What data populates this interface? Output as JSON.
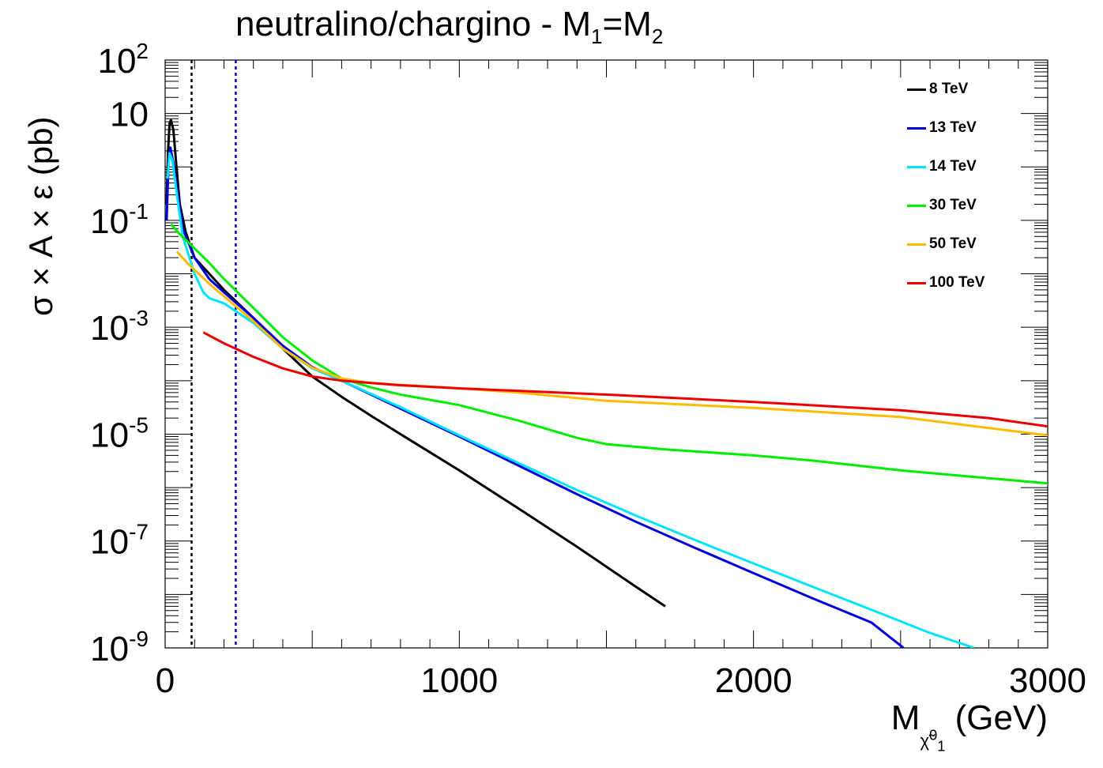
{
  "chart_data": {
    "type": "line",
    "title": "neutralino/chargino - M",
    "title_sub1": "1",
    "title_eq": "=M",
    "title_sub2": "2",
    "xlabel": "M",
    "xlabel_sub": "χ̃",
    "xlabel_sup": "0",
    "xlabel_subsub": "1",
    "xlabel_unit": " (GeV)",
    "ylabel": "σ × A × ε (pb)",
    "xlim": [
      0,
      3000
    ],
    "ylim_log10": [
      -9,
      2
    ],
    "x_ticks": [
      0,
      1000,
      2000,
      3000
    ],
    "x_tick_labels": [
      "0",
      "1000",
      "2000",
      "3000"
    ],
    "y_tick_labels": [
      {
        "base": "10",
        "exp": "2",
        "log": 2
      },
      {
        "base": "10",
        "exp": "",
        "log": 1
      },
      {
        "base": "10",
        "exp": "-1",
        "log": -1
      },
      {
        "base": "10",
        "exp": "-3",
        "log": -3
      },
      {
        "base": "10",
        "exp": "-5",
        "log": -5
      },
      {
        "base": "10",
        "exp": "-7",
        "log": -7
      },
      {
        "base": "10",
        "exp": "-9",
        "log": -9
      }
    ],
    "vertical_lines": [
      {
        "x": 90,
        "color": "#000000",
        "style": "dotted"
      },
      {
        "x": 240,
        "color": "#0000cc",
        "style": "dotted"
      }
    ],
    "series": [
      {
        "name": "8 TeV",
        "color": "#000000",
        "points": [
          [
            5,
            0.2
          ],
          [
            10,
            2
          ],
          [
            15,
            6.5
          ],
          [
            20,
            7.5
          ],
          [
            28,
            5
          ],
          [
            40,
            0.8
          ],
          [
            50,
            0.2
          ],
          [
            70,
            0.06
          ],
          [
            100,
            0.02
          ],
          [
            150,
            0.01
          ],
          [
            200,
            0.005
          ],
          [
            300,
            0.0015
          ],
          [
            400,
            0.0004
          ],
          [
            500,
            0.00012
          ],
          [
            600,
            5e-05
          ],
          [
            700,
            2.2e-05
          ],
          [
            800,
            1e-05
          ],
          [
            1000,
            2.1e-06
          ],
          [
            1200,
            4.1e-07
          ],
          [
            1400,
            7.8e-08
          ],
          [
            1600,
            1.4e-08
          ],
          [
            1700,
            6e-09
          ]
        ]
      },
      {
        "name": "13 TeV",
        "color": "#0000dd",
        "points": [
          [
            5,
            0.1
          ],
          [
            12,
            1.6
          ],
          [
            18,
            2.3
          ],
          [
            28,
            1.2
          ],
          [
            40,
            0.4
          ],
          [
            60,
            0.07
          ],
          [
            100,
            0.02
          ],
          [
            150,
            0.008
          ],
          [
            200,
            0.0045
          ],
          [
            300,
            0.0015
          ],
          [
            400,
            0.00045
          ],
          [
            500,
            0.00018
          ],
          [
            600,
            0.0001
          ],
          [
            700,
            5.5e-05
          ],
          [
            800,
            3e-05
          ],
          [
            1000,
            9e-06
          ],
          [
            1200,
            2.6e-06
          ],
          [
            1400,
            7.5e-07
          ],
          [
            1600,
            2.3e-07
          ],
          [
            1800,
            7.5e-08
          ],
          [
            2000,
            2.5e-08
          ],
          [
            2200,
            8.5e-09
          ],
          [
            2400,
            3e-09
          ],
          [
            2510,
            1e-09
          ]
        ]
      },
      {
        "name": "14 TeV",
        "color": "#00e5ff",
        "points": [
          [
            8,
            0.6
          ],
          [
            15,
            1.8
          ],
          [
            25,
            1.3
          ],
          [
            40,
            0.3
          ],
          [
            60,
            0.05
          ],
          [
            100,
            0.01
          ],
          [
            130,
            0.0045
          ],
          [
            150,
            0.0035
          ],
          [
            200,
            0.0028
          ],
          [
            300,
            0.0012
          ],
          [
            400,
            0.0004
          ],
          [
            500,
            0.00017
          ],
          [
            600,
            0.0001
          ],
          [
            800,
            3.2e-05
          ],
          [
            1000,
            9.5e-06
          ],
          [
            1200,
            2.9e-06
          ],
          [
            1400,
            9e-07
          ],
          [
            1600,
            3e-07
          ],
          [
            1800,
            1.05e-07
          ],
          [
            2000,
            3.8e-08
          ],
          [
            2200,
            1.4e-08
          ],
          [
            2400,
            5.2e-09
          ],
          [
            2600,
            1.9e-09
          ],
          [
            2750,
            1e-09
          ]
        ]
      },
      {
        "name": "30 TeV",
        "color": "#00ee00",
        "points": [
          [
            20,
            0.085
          ],
          [
            50,
            0.055
          ],
          [
            100,
            0.03
          ],
          [
            150,
            0.016
          ],
          [
            200,
            0.008
          ],
          [
            300,
            0.0023
          ],
          [
            400,
            0.00065
          ],
          [
            500,
            0.00024
          ],
          [
            600,
            0.00011
          ],
          [
            700,
            7.5e-05
          ],
          [
            800,
            5.5e-05
          ],
          [
            1000,
            3.5e-05
          ],
          [
            1200,
            1.8e-05
          ],
          [
            1400,
            8.5e-06
          ],
          [
            1500,
            6.5e-06
          ],
          [
            1700,
            5.2e-06
          ],
          [
            2000,
            4e-06
          ],
          [
            2200,
            3.2e-06
          ],
          [
            2500,
            2.1e-06
          ],
          [
            2800,
            1.5e-06
          ],
          [
            3000,
            1.2e-06
          ]
        ]
      },
      {
        "name": "50 TeV",
        "color": "#ffbb00",
        "points": [
          [
            40,
            0.026
          ],
          [
            80,
            0.015
          ],
          [
            150,
            0.0065
          ],
          [
            200,
            0.0038
          ],
          [
            300,
            0.0013
          ],
          [
            400,
            0.0004
          ],
          [
            500,
            0.000175
          ],
          [
            600,
            0.00011
          ],
          [
            700,
            9e-05
          ],
          [
            1000,
            7.2e-05
          ],
          [
            1200,
            6e-05
          ],
          [
            1500,
            4.2e-05
          ],
          [
            2000,
            3.1e-05
          ],
          [
            2500,
            2.1e-05
          ],
          [
            3000,
            9.5e-06
          ]
        ]
      },
      {
        "name": "100 TeV",
        "color": "#ee0000",
        "points": [
          [
            130,
            0.0008
          ],
          [
            200,
            0.0005
          ],
          [
            300,
            0.00028
          ],
          [
            400,
            0.00017
          ],
          [
            500,
            0.00012
          ],
          [
            600,
            0.0001
          ],
          [
            800,
            8.2e-05
          ],
          [
            1000,
            7.2e-05
          ],
          [
            1500,
            5.5e-05
          ],
          [
            2000,
            4e-05
          ],
          [
            2500,
            2.8e-05
          ],
          [
            2800,
            2e-05
          ],
          [
            3000,
            1.4e-05
          ]
        ]
      }
    ]
  }
}
